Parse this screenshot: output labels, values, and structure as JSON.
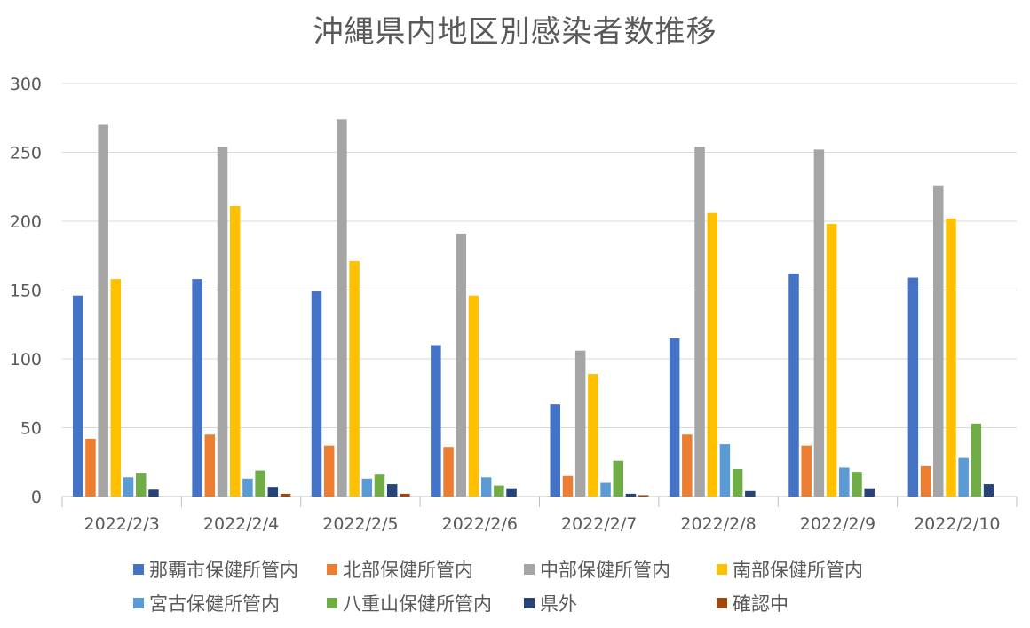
{
  "chart_data": {
    "type": "bar",
    "title": "沖縄県内地区別感染者数推移",
    "categories": [
      "2022/2/3",
      "2022/2/4",
      "2022/2/5",
      "2022/2/6",
      "2022/2/7",
      "2022/2/8",
      "2022/2/9",
      "2022/2/10"
    ],
    "ylim": [
      0,
      300
    ],
    "yticks": [
      0,
      50,
      100,
      150,
      200,
      250,
      300
    ],
    "grid": true,
    "legend_position": "bottom",
    "series": [
      {
        "name": "那覇市保健所管内",
        "color": "#4472C4",
        "values": [
          146,
          158,
          149,
          110,
          67,
          115,
          162,
          159
        ]
      },
      {
        "name": "北部保健所管内",
        "color": "#ED7D31",
        "values": [
          42,
          45,
          37,
          36,
          15,
          45,
          37,
          22
        ]
      },
      {
        "name": "中部保健所管内",
        "color": "#A5A5A5",
        "values": [
          270,
          254,
          274,
          191,
          106,
          254,
          252,
          226
        ]
      },
      {
        "name": "南部保健所管内",
        "color": "#FFC000",
        "values": [
          158,
          211,
          171,
          146,
          89,
          206,
          198,
          202
        ]
      },
      {
        "name": "宮古保健所管内",
        "color": "#5B9BD5",
        "values": [
          14,
          13,
          13,
          14,
          10,
          38,
          21,
          28
        ]
      },
      {
        "name": "八重山保健所管内",
        "color": "#70AD47",
        "values": [
          17,
          19,
          16,
          8,
          26,
          20,
          18,
          53
        ]
      },
      {
        "name": "県外",
        "color": "#264478",
        "values": [
          5,
          7,
          9,
          6,
          2,
          4,
          6,
          9
        ]
      },
      {
        "name": "確認中",
        "color": "#9E480E",
        "values": [
          0,
          2,
          2,
          0,
          1,
          0,
          0,
          0
        ]
      }
    ]
  }
}
